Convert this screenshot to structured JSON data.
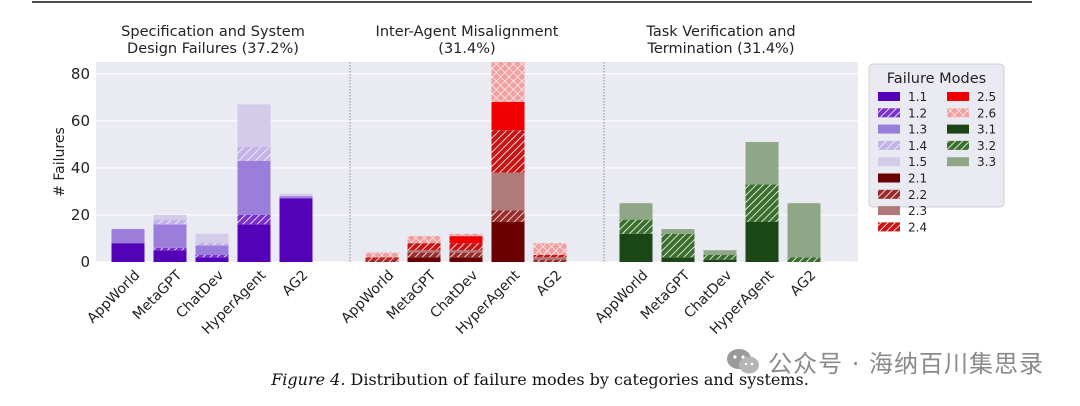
{
  "caption": {
    "label": "Figure 4.",
    "text": "Distribution of failure modes by categories and systems."
  },
  "watermark": {
    "icon": "wechat-icon",
    "text": "公众号 · 海纳百川集思录"
  },
  "colors": {
    "plot_bg": "#EAEAF2",
    "grid": "#FFFFFF"
  },
  "chart_data": {
    "type": "bar",
    "stacked": true,
    "ylabel": "# Failures",
    "ylim": [
      0,
      85
    ],
    "yticks": [
      0,
      20,
      40,
      60,
      80
    ],
    "grid": true,
    "legend_placement": "right",
    "legend_title": "Failure Modes",
    "systems": [
      "AppWorld",
      "MetaGPT",
      "ChatDev",
      "HyperAgent",
      "AG2"
    ],
    "panels": [
      {
        "title": [
          "Specification and System",
          "Design Failures (37.2%)"
        ],
        "series": [
          {
            "name": "1.1",
            "color": "#5302B8",
            "hatch": "none",
            "values": [
              8,
              5,
              2,
              16,
              27
            ]
          },
          {
            "name": "1.2",
            "color": "#7A2FD0",
            "hatch": "dense",
            "values": [
              0,
              1,
              1,
              4,
              0
            ]
          },
          {
            "name": "1.3",
            "color": "#9B7EDC",
            "hatch": "none",
            "values": [
              6,
              10,
              4,
              23,
              1
            ]
          },
          {
            "name": "1.4",
            "color": "#C4B3E6",
            "hatch": "light",
            "values": [
              0,
              2,
              1,
              6,
              0
            ]
          },
          {
            "name": "1.5",
            "color": "#D4CAEA",
            "hatch": "none",
            "values": [
              0,
              2,
              4,
              18,
              1
            ]
          }
        ]
      },
      {
        "title": [
          "Inter-Agent Misalignment",
          "(31.4%)"
        ],
        "series": [
          {
            "name": "2.1",
            "color": "#6B0000",
            "hatch": "none",
            "values": [
              0,
              2,
              2,
              17,
              0
            ]
          },
          {
            "name": "2.2",
            "color": "#9A2B2B",
            "hatch": "dense",
            "values": [
              1,
              2,
              2,
              5,
              1
            ]
          },
          {
            "name": "2.3",
            "color": "#B07A7A",
            "hatch": "none",
            "values": [
              0,
              1,
              1,
              16,
              1
            ]
          },
          {
            "name": "2.4",
            "color": "#C81414",
            "hatch": "dense",
            "values": [
              1,
              3,
              3,
              18,
              1
            ]
          },
          {
            "name": "2.5",
            "color": "#F00000",
            "hatch": "none",
            "values": [
              0,
              0,
              3,
              12,
              0
            ]
          },
          {
            "name": "2.6",
            "color": "#F0A0A0",
            "hatch": "cross",
            "values": [
              2,
              3,
              1,
              17,
              5
            ]
          }
        ]
      },
      {
        "title": [
          "Task Verification and",
          "Termination (31.4%)"
        ],
        "series": [
          {
            "name": "3.1",
            "color": "#1B4616",
            "hatch": "none",
            "values": [
              12,
              2,
              1,
              17,
              0
            ]
          },
          {
            "name": "3.2",
            "color": "#3B6F2E",
            "hatch": "dense",
            "values": [
              6,
              10,
              2,
              16,
              2
            ]
          },
          {
            "name": "3.3",
            "color": "#8EA887",
            "hatch": "none",
            "values": [
              7,
              2,
              2,
              18,
              23
            ]
          }
        ]
      }
    ]
  }
}
